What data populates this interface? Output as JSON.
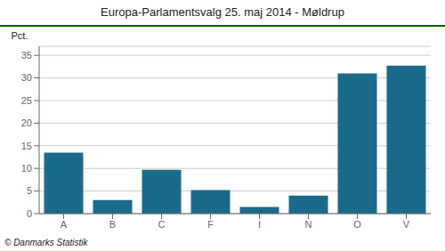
{
  "chart_data": {
    "type": "bar",
    "title": "Europa-Parlamentsvalg 25. maj 2014 - Møldrup",
    "ylabel": "Pct.",
    "footnote": "© Danmarks Statistik",
    "categories": [
      "A",
      "B",
      "C",
      "F",
      "I",
      "N",
      "O",
      "V"
    ],
    "values": [
      13.5,
      3.0,
      9.7,
      5.2,
      1.5,
      4.0,
      31.0,
      32.7
    ],
    "color": "#1a6b8a",
    "ylim": [
      0,
      37
    ],
    "yticks": [
      0,
      5,
      10,
      15,
      20,
      25,
      30,
      35
    ],
    "grid": true
  }
}
